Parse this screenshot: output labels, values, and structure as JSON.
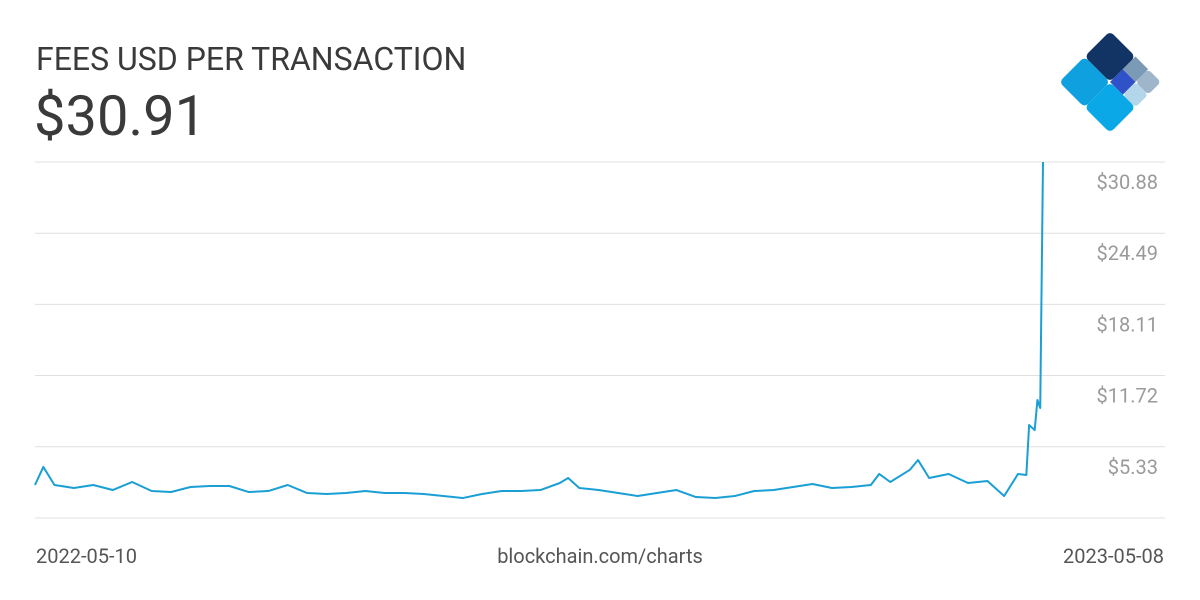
{
  "chart_data": {
    "type": "line",
    "title": "FEES USD PER TRANSACTION",
    "headline": "$30.91",
    "source": "blockchain.com/charts",
    "xlim": [
      "2022-05-10",
      "2023-05-08"
    ],
    "ylim": [
      -1.06,
      30.88
    ],
    "yticks": [
      {
        "value": 5.33,
        "label": "$5.33"
      },
      {
        "value": 11.72,
        "label": "$11.72"
      },
      {
        "value": 18.11,
        "label": "$18.11"
      },
      {
        "value": 24.49,
        "label": "$24.49"
      },
      {
        "value": 30.88,
        "label": "$30.88"
      }
    ],
    "grid": true,
    "color": "#1a9fd5",
    "x": [
      "2022-05-10",
      "2022-05-13",
      "2022-05-17",
      "2022-05-24",
      "2022-05-31",
      "2022-06-07",
      "2022-06-14",
      "2022-06-21",
      "2022-06-28",
      "2022-07-05",
      "2022-07-12",
      "2022-07-19",
      "2022-07-26",
      "2022-08-02",
      "2022-08-09",
      "2022-08-16",
      "2022-08-23",
      "2022-08-30",
      "2022-09-06",
      "2022-09-13",
      "2022-09-20",
      "2022-09-27",
      "2022-10-04",
      "2022-10-11",
      "2022-10-18",
      "2022-10-25",
      "2022-11-01",
      "2022-11-08",
      "2022-11-15",
      "2022-11-18",
      "2022-11-22",
      "2022-11-29",
      "2022-12-06",
      "2022-12-13",
      "2022-12-20",
      "2022-12-27",
      "2023-01-03",
      "2023-01-10",
      "2023-01-17",
      "2023-01-24",
      "2023-01-31",
      "2023-02-07",
      "2023-02-14",
      "2023-02-21",
      "2023-02-28",
      "2023-03-07",
      "2023-03-10",
      "2023-03-14",
      "2023-03-21",
      "2023-03-24",
      "2023-03-28",
      "2023-04-04",
      "2023-04-11",
      "2023-04-18",
      "2023-04-24",
      "2023-04-29",
      "2023-05-02",
      "2023-05-03",
      "2023-05-05",
      "2023-05-06",
      "2023-05-07",
      "2023-05-08"
    ],
    "values": [
      1.9,
      3.52,
      1.9,
      1.63,
      1.9,
      1.45,
      2.17,
      1.36,
      1.27,
      1.72,
      1.81,
      1.81,
      1.27,
      1.36,
      1.9,
      1.18,
      1.09,
      1.18,
      1.36,
      1.18,
      1.18,
      1.09,
      0.91,
      0.73,
      1.09,
      1.36,
      1.36,
      1.45,
      2.08,
      2.53,
      1.63,
      1.45,
      1.18,
      0.91,
      1.18,
      1.45,
      0.82,
      0.73,
      0.91,
      1.36,
      1.45,
      1.72,
      1.99,
      1.63,
      1.72,
      1.9,
      2.89,
      2.17,
      3.25,
      4.14,
      2.53,
      2.89,
      2.08,
      2.26,
      0.91,
      2.89,
      2.8,
      7.28,
      6.83,
      9.53,
      8.81,
      30.91
    ]
  }
}
